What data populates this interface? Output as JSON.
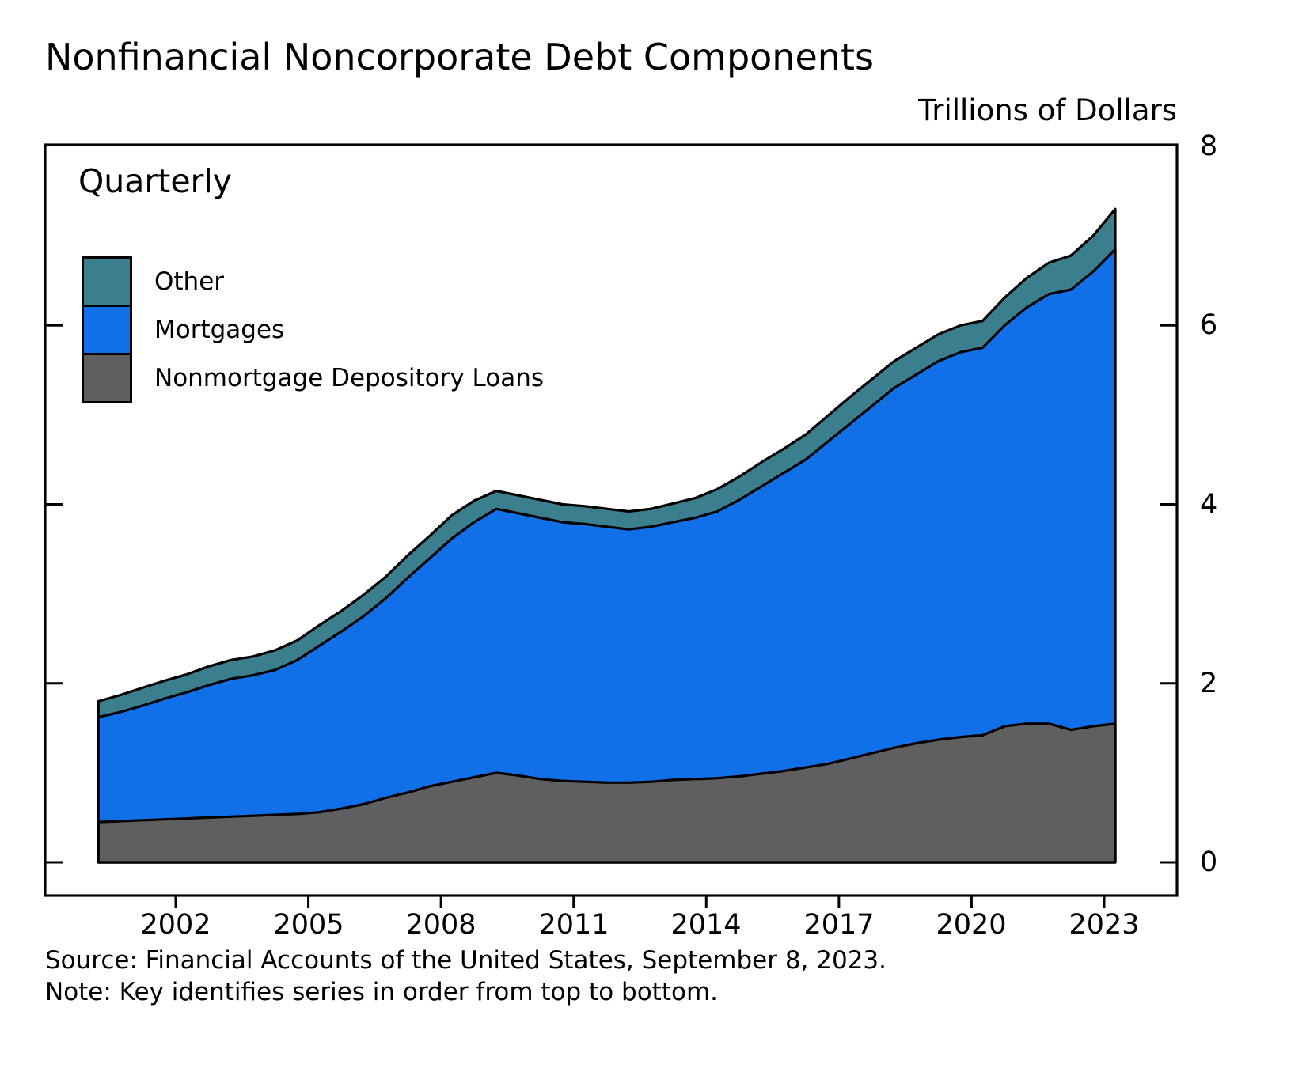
{
  "source_line": "Source: Financial Accounts of the United States, September 8, 2023.",
  "note_line": "Note: Key identifies series in order from top to bottom.",
  "chart_data": {
    "type": "area",
    "stacked": true,
    "title": "Nonfinancial Noncorporate Debt Components",
    "unit_label": "Trillions of Dollars",
    "frequency_label": "Quarterly",
    "xlabel": "",
    "ylabel": "Trillions of Dollars",
    "ylim": [
      0,
      8
    ],
    "xlim": [
      2000.25,
      2023.25
    ],
    "grid": false,
    "legend_position": "top-left",
    "legend_order_note": "Key identifies series in order from top to bottom: Other, Mortgages, Nonmortgage Depository Loans",
    "outline_color": "#000000",
    "yticks": [
      0,
      2,
      4,
      6,
      8
    ],
    "xticks": [
      2002,
      2005,
      2008,
      2011,
      2014,
      2017,
      2020,
      2023
    ],
    "x": [
      2000.25,
      2000.75,
      2001.25,
      2001.75,
      2002.25,
      2002.75,
      2003.25,
      2003.75,
      2004.25,
      2004.75,
      2005.25,
      2005.75,
      2006.25,
      2006.75,
      2007.25,
      2007.75,
      2008.25,
      2008.75,
      2009.25,
      2009.75,
      2010.25,
      2010.75,
      2011.25,
      2011.75,
      2012.25,
      2012.75,
      2013.25,
      2013.75,
      2014.25,
      2014.75,
      2015.25,
      2015.75,
      2016.25,
      2016.75,
      2017.25,
      2017.75,
      2018.25,
      2018.75,
      2019.25,
      2019.75,
      2020.25,
      2020.75,
      2021.25,
      2021.75,
      2022.25,
      2022.75,
      2023.25
    ],
    "series": [
      {
        "name": "Nonmortgage Depository Loans",
        "color": "#5f5f5f",
        "values": [
          0.45,
          0.46,
          0.47,
          0.48,
          0.49,
          0.5,
          0.51,
          0.52,
          0.53,
          0.54,
          0.56,
          0.6,
          0.65,
          0.72,
          0.78,
          0.85,
          0.9,
          0.95,
          1.0,
          0.97,
          0.93,
          0.91,
          0.9,
          0.89,
          0.89,
          0.9,
          0.92,
          0.93,
          0.94,
          0.96,
          0.99,
          1.02,
          1.06,
          1.1,
          1.16,
          1.22,
          1.28,
          1.33,
          1.37,
          1.4,
          1.42,
          1.52,
          1.55,
          1.55,
          1.48,
          1.52,
          1.55
        ]
      },
      {
        "name": "Mortgages",
        "color": "#1170e8",
        "values": [
          1.17,
          1.22,
          1.28,
          1.35,
          1.41,
          1.48,
          1.54,
          1.57,
          1.62,
          1.72,
          1.86,
          1.98,
          2.1,
          2.23,
          2.4,
          2.55,
          2.72,
          2.85,
          2.95,
          2.93,
          2.92,
          2.89,
          2.88,
          2.86,
          2.83,
          2.85,
          2.88,
          2.92,
          2.98,
          3.09,
          3.21,
          3.33,
          3.44,
          3.6,
          3.74,
          3.88,
          4.02,
          4.12,
          4.23,
          4.3,
          4.33,
          4.48,
          4.65,
          4.8,
          4.92,
          5.08,
          5.3
        ]
      },
      {
        "name": "Other",
        "color": "#3b7f8e",
        "values": [
          0.18,
          0.19,
          0.2,
          0.2,
          0.2,
          0.21,
          0.21,
          0.21,
          0.22,
          0.22,
          0.23,
          0.23,
          0.24,
          0.24,
          0.25,
          0.25,
          0.26,
          0.24,
          0.2,
          0.2,
          0.2,
          0.2,
          0.2,
          0.2,
          0.2,
          0.2,
          0.21,
          0.22,
          0.25,
          0.26,
          0.27,
          0.27,
          0.28,
          0.29,
          0.3,
          0.3,
          0.3,
          0.3,
          0.3,
          0.3,
          0.3,
          0.31,
          0.33,
          0.35,
          0.38,
          0.4,
          0.45
        ]
      }
    ]
  }
}
